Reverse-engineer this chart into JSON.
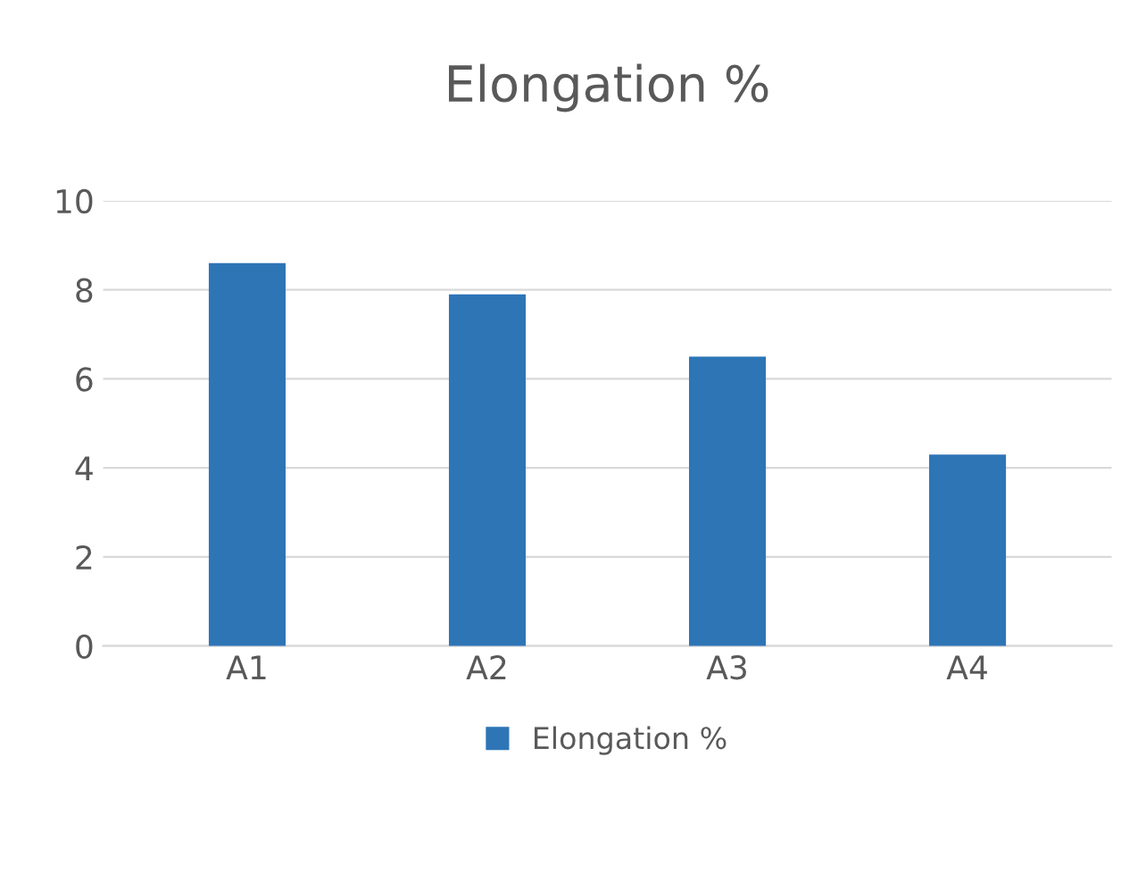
{
  "chart_data": {
    "type": "bar",
    "title": "Elongation %",
    "categories": [
      "A1",
      "A2",
      "A3",
      "A4"
    ],
    "series": [
      {
        "name": "Elongation %",
        "color": "#2e75b6",
        "values": [
          8.6,
          7.9,
          6.5,
          4.3
        ]
      }
    ],
    "ylim": [
      0,
      10
    ],
    "yticks": [
      0,
      2,
      4,
      6,
      8,
      10
    ],
    "grid": "y",
    "legend": "bottom"
  }
}
